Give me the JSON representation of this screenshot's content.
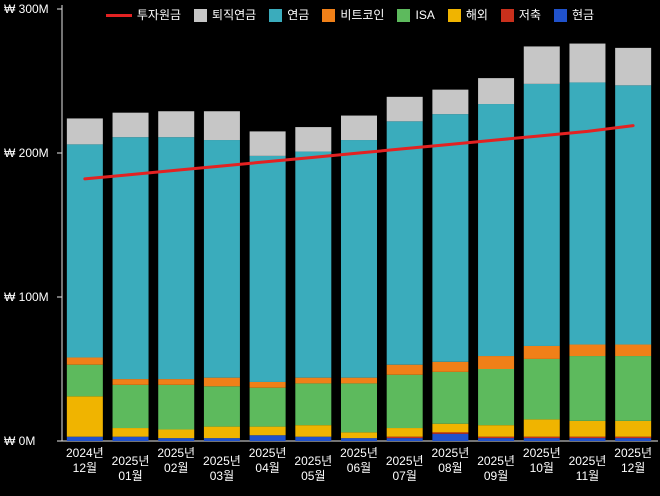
{
  "chart_data": {
    "type": "bar",
    "stacked": true,
    "title": "",
    "background_color": "#000000",
    "axis_color": "#e8e8e8",
    "text_color": "#ffffff",
    "ylim": [
      0,
      300
    ],
    "y_unit_suffix": "M",
    "grid": false,
    "legend_position": "top",
    "y_ticks": [
      {
        "value": 0,
        "label": "₩ 0M"
      },
      {
        "value": 100,
        "label": "₩ 100M"
      },
      {
        "value": 200,
        "label": "₩ 200M"
      },
      {
        "value": 300,
        "label": "₩ 300M"
      }
    ],
    "categories": [
      {
        "line1": "2024년",
        "line2": "12월"
      },
      {
        "line1": "2025년",
        "line2": "01월"
      },
      {
        "line1": "2025년",
        "line2": "02월"
      },
      {
        "line1": "2025년",
        "line2": "03월"
      },
      {
        "line1": "2025년",
        "line2": "04월"
      },
      {
        "line1": "2025년",
        "line2": "05월"
      },
      {
        "line1": "2025년",
        "line2": "06월"
      },
      {
        "line1": "2025년",
        "line2": "07월"
      },
      {
        "line1": "2025년",
        "line2": "08월"
      },
      {
        "line1": "2025년",
        "line2": "09월"
      },
      {
        "line1": "2025년",
        "line2": "10월"
      },
      {
        "line1": "2025년",
        "line2": "11월"
      },
      {
        "line1": "2025년",
        "line2": "12월"
      }
    ],
    "stack_order": "bottom-to-top",
    "series": [
      {
        "id": "cash",
        "name": "현금",
        "color": "#2052cc",
        "values": [
          3,
          3,
          2,
          2,
          4,
          3,
          2,
          2,
          5,
          2,
          2,
          2,
          2
        ]
      },
      {
        "id": "savings",
        "name": "저축",
        "color": "#c9301c",
        "values": [
          0,
          0,
          0,
          0,
          0,
          0,
          0,
          1,
          1,
          1,
          1,
          1,
          1
        ]
      },
      {
        "id": "overseas",
        "name": "해외",
        "color": "#f0b400",
        "values": [
          28,
          6,
          6,
          8,
          6,
          8,
          4,
          6,
          6,
          8,
          12,
          11,
          11
        ]
      },
      {
        "id": "isa",
        "name": "ISA",
        "color": "#5dba5d",
        "values": [
          22,
          30,
          31,
          28,
          27,
          29,
          34,
          37,
          36,
          39,
          42,
          45,
          45
        ]
      },
      {
        "id": "bitcoin",
        "name": "비트코인",
        "color": "#f08018",
        "values": [
          5,
          4,
          4,
          6,
          4,
          4,
          4,
          7,
          7,
          9,
          9,
          8,
          8
        ]
      },
      {
        "id": "pension",
        "name": "연금",
        "color": "#3aacbc",
        "values": [
          148,
          168,
          168,
          165,
          157,
          157,
          165,
          169,
          172,
          175,
          182,
          182,
          180
        ]
      },
      {
        "id": "retirement-pension",
        "name": "퇴직연금",
        "color": "#c6c6c6",
        "values": [
          18,
          17,
          18,
          20,
          17,
          17,
          17,
          17,
          17,
          18,
          26,
          27,
          26
        ]
      }
    ],
    "line_series": {
      "id": "investment-principal",
      "name": "투자원금",
      "color": "#e32222",
      "values": [
        182,
        185,
        188,
        191,
        194,
        197,
        200,
        203,
        206,
        209,
        212,
        215,
        219
      ]
    },
    "legend": [
      {
        "id": "investment-principal",
        "label": "투자원금",
        "color": "#e32222",
        "swatch": "line"
      },
      {
        "id": "retirement-pension",
        "label": "퇴직연금",
        "color": "#c6c6c6",
        "swatch": "box"
      },
      {
        "id": "pension",
        "label": "연금",
        "color": "#3aacbc",
        "swatch": "box"
      },
      {
        "id": "bitcoin",
        "label": "비트코인",
        "color": "#f08018",
        "swatch": "box"
      },
      {
        "id": "isa",
        "label": "ISA",
        "color": "#5dba5d",
        "swatch": "box"
      },
      {
        "id": "overseas",
        "label": "해외",
        "color": "#f0b400",
        "swatch": "box"
      },
      {
        "id": "savings",
        "label": "저축",
        "color": "#c9301c",
        "swatch": "box"
      },
      {
        "id": "cash",
        "label": "현금",
        "color": "#2052cc",
        "swatch": "box"
      }
    ]
  }
}
